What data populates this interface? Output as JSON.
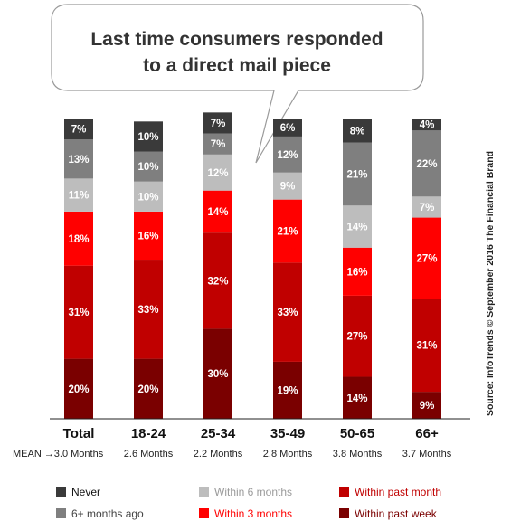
{
  "chart_data": {
    "type": "bar",
    "stacked": true,
    "title_lines": [
      "Last time consumers responded",
      "to a direct mail piece"
    ],
    "categories": [
      "Total",
      "18-24",
      "25-34",
      "35-49",
      "50-65",
      "66+"
    ],
    "mean_prefix": "MEAN →",
    "mean_values": [
      "3.0 Months",
      "2.6 Months",
      "2.2 Months",
      "2.8 Months",
      "3.8 Months",
      "3.7 Months"
    ],
    "source": "Source: InfoTrends © September 2016 The Financial Brand",
    "ylim": [
      0,
      100
    ],
    "series": [
      {
        "name": "Within past week",
        "color": "#7a0000",
        "values": [
          20,
          20,
          30,
          19,
          14,
          9
        ]
      },
      {
        "name": "Within past month",
        "color": "#c00000",
        "values": [
          31,
          33,
          32,
          33,
          27,
          31
        ]
      },
      {
        "name": "Within 3 months",
        "color": "#ff0000",
        "values": [
          18,
          16,
          14,
          21,
          16,
          27
        ]
      },
      {
        "name": "Within 6 months",
        "color": "#bdbdbd",
        "values": [
          11,
          10,
          12,
          9,
          14,
          7
        ]
      },
      {
        "name": "6+ months ago",
        "color": "#7f7f7f",
        "values": [
          13,
          10,
          7,
          12,
          21,
          22
        ]
      },
      {
        "name": "Never",
        "color": "#3a3a3a",
        "values": [
          7,
          10,
          7,
          6,
          8,
          4
        ]
      }
    ],
    "legend": [
      {
        "name": "Never",
        "color": "#3a3a3a",
        "text_color": "#111111"
      },
      {
        "name": "Within 6 months",
        "color": "#bdbdbd",
        "text_color": "#9a9a9a"
      },
      {
        "name": "Within past month",
        "color": "#c00000",
        "text_color": "#c00000"
      },
      {
        "name": "6+ months ago",
        "color": "#7f7f7f",
        "text_color": "#444444"
      },
      {
        "name": "Within 3 months",
        "color": "#ff0000",
        "text_color": "#ff0000"
      },
      {
        "name": "Within past week",
        "color": "#7a0000",
        "text_color": "#7a0000"
      }
    ],
    "legend_placement": "bottom",
    "grid": false
  }
}
